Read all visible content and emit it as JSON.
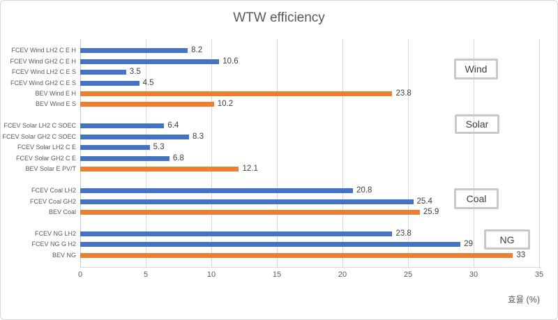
{
  "chart_data": {
    "type": "bar",
    "orientation": "horizontal",
    "title": "WTW efficiency",
    "xlabel": "효율 (%)",
    "xlim": [
      0,
      35
    ],
    "xticks": [
      0,
      5,
      10,
      15,
      20,
      25,
      30,
      35
    ],
    "grid": true,
    "legend": "none",
    "group_labels_position": "right",
    "series_colors": {
      "FCEV": "#4472C4",
      "BEV": "#ED7D31"
    },
    "colors": {
      "grid": "#d9d9d9",
      "axis_line": "#c9c9c9",
      "tick_text": "#595959",
      "category_text": "#595959",
      "value_text": "#404040",
      "title_text": "#595959",
      "group_box_border": "#c8c8c8",
      "group_box_text": "#404040"
    },
    "groups": [
      {
        "label": "Wind",
        "items": [
          {
            "category": "FCEV Wind LH2 C E H",
            "series": "FCEV",
            "value": 8.2
          },
          {
            "category": "FCEV Wind GH2 C E H",
            "series": "FCEV",
            "value": 10.6
          },
          {
            "category": "FCEV Wind LH2 C E S",
            "series": "FCEV",
            "value": 3.5
          },
          {
            "category": "FCEV Wind GH2 C E S",
            "series": "FCEV",
            "value": 4.5
          },
          {
            "category": "BEV Wind E H",
            "series": "BEV",
            "value": 23.8
          },
          {
            "category": "BEV Wind E S",
            "series": "BEV",
            "value": 10.2
          }
        ]
      },
      {
        "label": "Solar",
        "items": [
          {
            "category": "FCEV Solar LH2 C SOEC",
            "series": "FCEV",
            "value": 6.4
          },
          {
            "category": "FCEV Solar GH2 C SOEC",
            "series": "FCEV",
            "value": 8.3
          },
          {
            "category": "FCEV Solar LH2 C E",
            "series": "FCEV",
            "value": 5.3
          },
          {
            "category": "FCEV Solar GH2 C E",
            "series": "FCEV",
            "value": 6.8
          },
          {
            "category": "BEV Solar E PV/T",
            "series": "BEV",
            "value": 12.1
          }
        ]
      },
      {
        "label": "Coal",
        "items": [
          {
            "category": "FCEV Coal LH2",
            "series": "FCEV",
            "value": 20.8
          },
          {
            "category": "FCEV Coal GH2",
            "series": "FCEV",
            "value": 25.4
          },
          {
            "category": "BEV Coal",
            "series": "BEV",
            "value": 25.9
          }
        ]
      },
      {
        "label": "NG",
        "items": [
          {
            "category": "FCEV NG LH2",
            "series": "FCEV",
            "value": 23.8
          },
          {
            "category": "FCEV NG G H2",
            "series": "FCEV",
            "value": 29
          },
          {
            "category": "BEV NG",
            "series": "BEV",
            "value": 33
          }
        ]
      }
    ]
  }
}
